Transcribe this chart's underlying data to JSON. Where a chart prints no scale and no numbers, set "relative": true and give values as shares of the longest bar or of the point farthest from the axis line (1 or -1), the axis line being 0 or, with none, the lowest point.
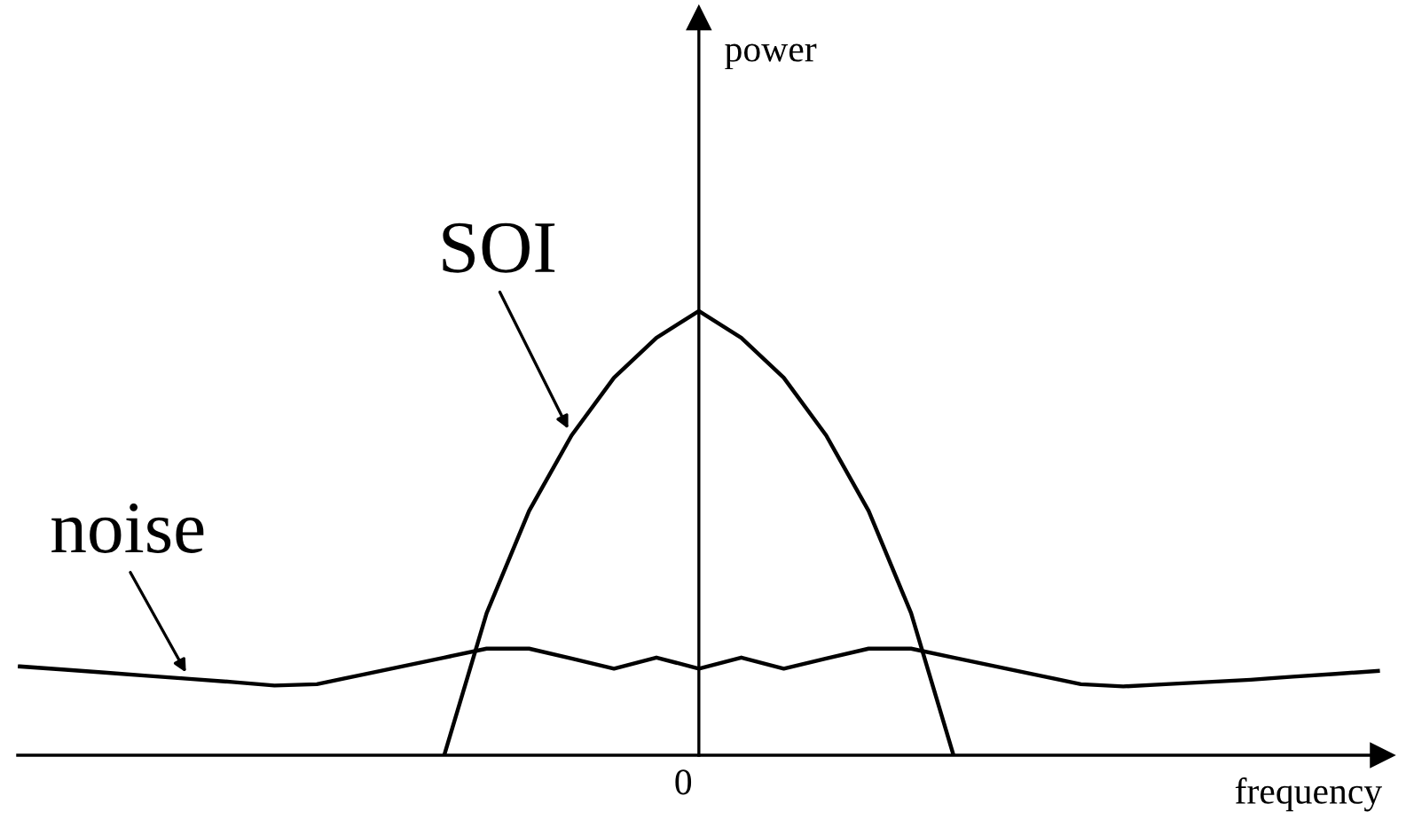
{
  "chart_data": {
    "type": "line",
    "relative": true,
    "xlabel": "frequency",
    "categories": [
      null,
      null,
      null,
      null,
      null,
      null,
      null,
      null,
      null,
      null,
      null,
      null,
      null,
      null,
      null,
      null,
      null,
      null,
      null,
      null,
      null,
      null,
      null,
      null,
      null,
      null,
      null,
      null,
      null,
      null,
      null,
      null,
      null
    ],
    "series": [
      {
        "name": "SOI",
        "color": "#000000",
        "values": [
          null,
          null,
          null,
          null,
          null,
          null,
          null,
          null,
          null,
          null,
          0,
          0.32,
          0.55,
          0.72,
          0.85,
          0.94,
          1,
          0.94,
          0.85,
          0.72,
          0.55,
          0.32,
          0,
          null,
          null,
          null,
          null,
          null,
          null,
          null,
          null,
          null,
          null
        ]
      },
      {
        "name": "noise",
        "color": "#000000",
        "values": [
          0.2,
          0.193,
          0.186,
          0.179,
          0.172,
          0.165,
          0.157,
          0.16,
          0.18,
          0.2,
          0.22,
          0.24,
          0.24,
          0.218,
          0.195,
          0.22,
          0.195,
          0.22,
          0.195,
          0.218,
          0.24,
          0.24,
          0.22,
          0.2,
          0.18,
          0.16,
          0.155,
          0.16,
          0.165,
          0.17,
          0.177,
          0.183,
          0.19
        ]
      }
    ],
    "annotations": [
      "power",
      "0"
    ],
    "legend": false,
    "marker": "none",
    "line_style": "solid"
  }
}
